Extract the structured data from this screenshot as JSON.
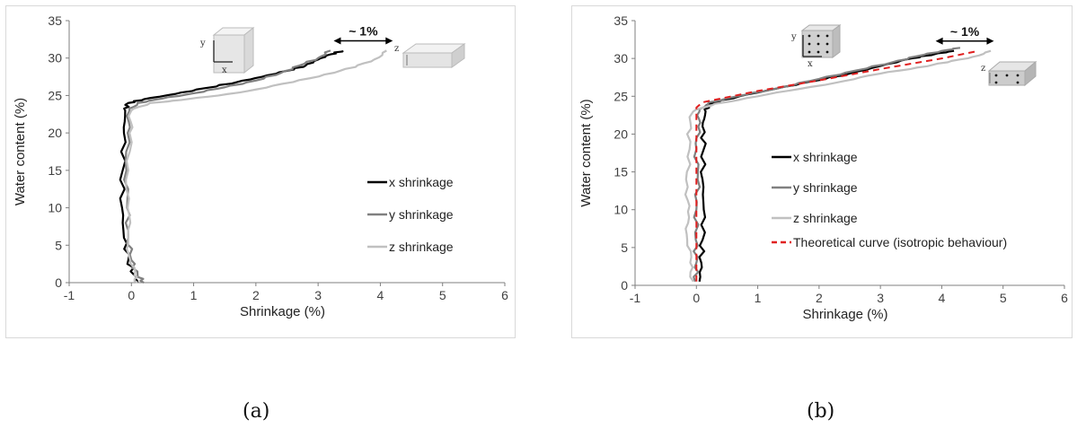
{
  "chart_data": [
    {
      "id": "a",
      "type": "line",
      "xlabel": "Shrinkage (%)",
      "ylabel": "Water content (%)",
      "xlim": [
        -1,
        6
      ],
      "ylim": [
        0,
        35
      ],
      "xticks": [
        "-1",
        "0",
        "1",
        "2",
        "3",
        "4",
        "5",
        "6"
      ],
      "yticks": [
        "0",
        "5",
        "10",
        "15",
        "20",
        "25",
        "30",
        "35"
      ],
      "grid": false,
      "legend_position": "right",
      "annotation": "~ 1%",
      "cube_axis_labels": {
        "fine_y": "y",
        "fine_x": "x",
        "big_z": "z"
      },
      "series": [
        {
          "name": "x shrinkage",
          "color": "#000000",
          "x": [
            0.1,
            0.05,
            -0.05,
            -0.12,
            -0.15,
            -0.14,
            -0.12,
            -0.1,
            -0.05,
            0.2,
            0.7,
            1.2,
            1.7,
            2.1,
            2.5,
            2.8,
            3.0,
            3.2,
            3.4
          ],
          "y": [
            0,
            1,
            3,
            6,
            10,
            15,
            20,
            23,
            24,
            24.5,
            25.2,
            26,
            26.8,
            27.5,
            28.3,
            29,
            29.8,
            30.5,
            31
          ]
        },
        {
          "name": "y shrinkage",
          "color": "#808080",
          "x": [
            0.2,
            0.1,
            0.0,
            -0.05,
            -0.07,
            -0.08,
            -0.06,
            -0.03,
            0.1,
            0.5,
            1.0,
            1.5,
            2.0,
            2.4,
            2.7,
            3.0,
            3.2
          ],
          "y": [
            0,
            1,
            3,
            6,
            10,
            15,
            20,
            23,
            24,
            24.6,
            25.3,
            26.1,
            27,
            28,
            29,
            30,
            31
          ]
        },
        {
          "name": "z shrinkage",
          "color": "#c0c0c0",
          "x": [
            0.1,
            0.05,
            -0.02,
            -0.05,
            -0.06,
            -0.05,
            -0.03,
            0.0,
            0.3,
            0.8,
            1.4,
            2.0,
            2.6,
            3.1,
            3.6,
            3.9,
            4.1
          ],
          "y": [
            0,
            1,
            3,
            6,
            10,
            15,
            20,
            23,
            24,
            24.4,
            25,
            25.8,
            26.8,
            27.8,
            28.8,
            29.8,
            31
          ]
        }
      ]
    },
    {
      "id": "b",
      "type": "line",
      "xlabel": "Shrinkage (%)",
      "ylabel": "Water content (%)",
      "xlim": [
        -1,
        6
      ],
      "ylim": [
        0,
        35
      ],
      "xticks": [
        "-1",
        "0",
        "1",
        "2",
        "3",
        "4",
        "5",
        "6"
      ],
      "yticks": [
        "0",
        "5",
        "10",
        "15",
        "20",
        "25",
        "30",
        "35"
      ],
      "grid": false,
      "legend_position": "right",
      "annotation": "~ 1%",
      "cube_axis_labels": {
        "fine_y": "y",
        "fine_x": "x",
        "big_z": "z"
      },
      "series": [
        {
          "name": "x shrinkage",
          "color": "#000000",
          "x": [
            0.05,
            0.08,
            0.1,
            0.12,
            0.1,
            0.12,
            0.1,
            0.15,
            0.2,
            0.7,
            1.3,
            1.9,
            2.5,
            3.0,
            3.5,
            3.9,
            4.2
          ],
          "y": [
            0.5,
            3,
            6,
            10,
            14,
            18,
            21,
            23,
            24,
            25,
            26,
            27,
            28,
            29,
            30,
            30.6,
            31
          ]
        },
        {
          "name": "y shrinkage",
          "color": "#808080",
          "x": [
            -0.02,
            0.0,
            -0.01,
            0.0,
            0.02,
            0.0,
            0.03,
            0.05,
            0.2,
            0.8,
            1.4,
            2.0,
            2.6,
            3.2,
            3.6,
            4.0,
            4.3
          ],
          "y": [
            0.5,
            3,
            6,
            10,
            14,
            18,
            21,
            23,
            24.2,
            25.2,
            26.2,
            27.3,
            28.4,
            29.5,
            30.3,
            31,
            31.4
          ]
        },
        {
          "name": "z shrinkage",
          "color": "#c0c0c0",
          "x": [
            -0.05,
            -0.1,
            -0.15,
            -0.12,
            -0.18,
            -0.1,
            -0.15,
            -0.05,
            0.3,
            1.0,
            1.7,
            2.4,
            3.0,
            3.6,
            4.1,
            4.5,
            4.8
          ],
          "y": [
            0.5,
            3,
            6,
            9,
            12,
            16,
            20,
            23,
            24,
            25,
            26,
            27,
            28,
            28.8,
            29.5,
            30.2,
            31
          ]
        },
        {
          "name": "Theoretical curve (isotropic behaviour)",
          "color": "#e02020",
          "dashed": true,
          "x": [
            0,
            0,
            0.1,
            1.0,
            2.0,
            3.0,
            4.0,
            4.6
          ],
          "y": [
            0.5,
            23.5,
            24.2,
            25.7,
            27.1,
            28.6,
            30,
            31
          ]
        }
      ]
    }
  ],
  "captions": {
    "a": "(a)",
    "b": "(b)"
  }
}
